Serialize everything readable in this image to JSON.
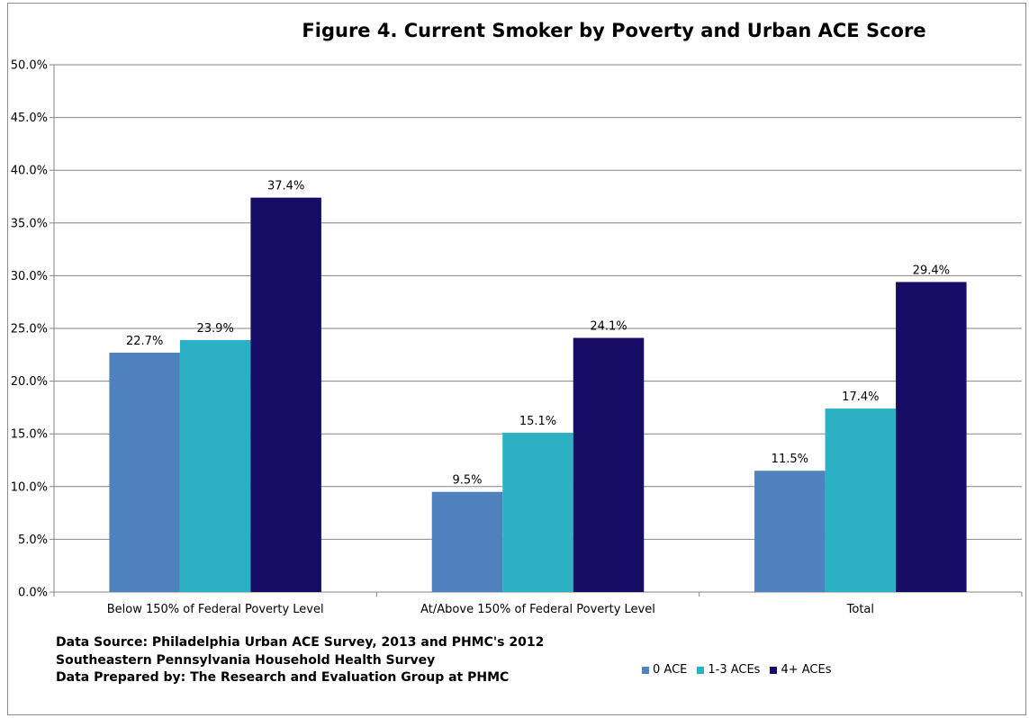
{
  "chart_data": {
    "type": "bar",
    "title": "Figure 4. Current Smoker by Poverty and Urban ACE Score",
    "categories": [
      "Below 150% of Federal Poverty Level",
      "At/Above 150% of Federal Poverty Level",
      "Total"
    ],
    "series": [
      {
        "name": "0 ACE",
        "color": "#4f81bd",
        "values": [
          22.7,
          9.5,
          11.5
        ],
        "labels": [
          "22.7%",
          "9.5%",
          "11.5%"
        ]
      },
      {
        "name": "1-3 ACEs",
        "color": "#2cb1c4",
        "values": [
          23.9,
          15.1,
          17.4
        ],
        "labels": [
          "23.9%",
          "15.1%",
          "17.4%"
        ]
      },
      {
        "name": "4+ ACEs",
        "color": "#170d66",
        "values": [
          37.4,
          24.1,
          29.4
        ],
        "labels": [
          "37.4%",
          "24.1%",
          "29.4%"
        ]
      }
    ],
    "yticks": [
      "0.0%",
      "5.0%",
      "10.0%",
      "15.0%",
      "20.0%",
      "25.0%",
      "30.0%",
      "35.0%",
      "40.0%",
      "45.0%",
      "50.0%"
    ],
    "ylim": [
      0,
      50
    ],
    "grid": true,
    "legend_position": "bottom-right"
  },
  "source": {
    "lines": [
      "Data Source: Philadelphia Urban ACE Survey, 2013 and PHMC's 2012",
      "Southeastern Pennsylvania Household Health Survey",
      "Data Prepared by: The Research and Evaluation Group at PHMC"
    ]
  }
}
